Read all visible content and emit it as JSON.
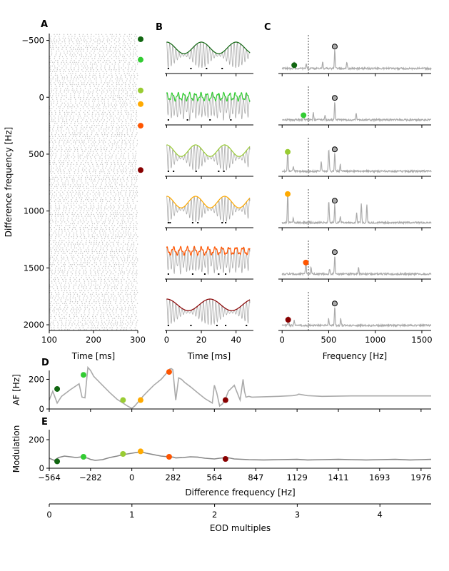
{
  "colors": {
    "trace": "#aaaaaa",
    "raster": "#c0c0c0",
    "dark_green": "#116611",
    "green": "#33cc33",
    "yellow_green": "#99cc33",
    "orange": "#ffaa00",
    "red_orange": "#ff5500",
    "dark_red": "#880000"
  },
  "chart_data": [
    {
      "panel": "A",
      "type": "scatter",
      "xlabel": "Time [ms]",
      "ylabel": "Difference frequency [Hz]",
      "xlim": [
        100,
        300
      ],
      "ylim": [
        2050,
        -560
      ],
      "y_inverted": true,
      "xticks": [
        100,
        200,
        300
      ],
      "yticks": [
        -500,
        0,
        500,
        1000,
        1500,
        2000
      ],
      "marker_df": [
        -510,
        -330,
        -60,
        60,
        250,
        640
      ],
      "marker_colors": [
        "dark_green",
        "green",
        "yellow_green",
        "orange",
        "red_orange",
        "dark_red"
      ]
    },
    {
      "panel": "B",
      "type": "line",
      "xlabel": "Time [ms]",
      "xlim": [
        -1,
        50
      ],
      "xticks": [
        0,
        20,
        40
      ],
      "traces": [
        {
          "df": -510,
          "color": "dark_green",
          "envelope": "smooth",
          "env_period_ms": 20,
          "spikes_ms": [
            1,
            14,
            23,
            32
          ]
        },
        {
          "df": -330,
          "color": "green",
          "envelope": "jagged",
          "env_period_ms": 3.3,
          "spikes_ms": [
            1,
            12,
            25,
            37
          ]
        },
        {
          "df": -60,
          "color": "yellow_green",
          "envelope": "smooth",
          "env_period_ms": 16.7,
          "spikes_ms": [
            1,
            4,
            17,
            30,
            33
          ]
        },
        {
          "df": 60,
          "color": "orange",
          "envelope": "smooth",
          "env_period_ms": 16.7,
          "spikes_ms": [
            1,
            2,
            15,
            18,
            32,
            34
          ]
        },
        {
          "df": 250,
          "color": "red_orange",
          "envelope": "jagged",
          "env_period_ms": 4,
          "spikes_ms": [
            1,
            15,
            22,
            30,
            34
          ]
        },
        {
          "df": 640,
          "color": "dark_red",
          "envelope": "smooth",
          "env_period_ms": 25,
          "spikes_ms": [
            1,
            14,
            29,
            34,
            46
          ]
        }
      ]
    },
    {
      "panel": "C",
      "type": "line",
      "xlabel": "Frequency [Hz]",
      "xlim": [
        -40,
        1600
      ],
      "xticks": [
        0,
        500,
        1000,
        1500
      ],
      "eodf_hz": 565,
      "dashed_line_hz": 282,
      "beat_markers_hz": [
        130,
        230,
        60,
        60,
        255,
        65
      ],
      "beat_marker_heights": [
        0.18,
        0.22,
        0.65,
        0.92,
        0.42,
        0.25
      ]
    },
    {
      "panel": "D",
      "type": "line",
      "ylabel": "AF [Hz]",
      "xlim": [
        -564,
        2045
      ],
      "ylim": [
        0,
        260
      ],
      "yticks": [
        0,
        200
      ],
      "x": [
        -564,
        -540,
        -510,
        -480,
        -420,
        -360,
        -340,
        -320,
        -300,
        -282,
        -260,
        -200,
        -150,
        -100,
        -60,
        -30,
        -10,
        0,
        20,
        50,
        80,
        110,
        150,
        200,
        240,
        260,
        270,
        280,
        300,
        320,
        340,
        360,
        400,
        450,
        500,
        550,
        564,
        580,
        600,
        620,
        640,
        660,
        700,
        740,
        760,
        770,
        780,
        800,
        820,
        1000,
        1100,
        1129,
        1140,
        1200,
        1300,
        1500,
        1600,
        1700,
        1800,
        1900,
        2045
      ],
      "y": [
        60,
        120,
        40,
        85,
        130,
        170,
        80,
        75,
        280,
        260,
        220,
        160,
        110,
        65,
        40,
        20,
        10,
        5,
        20,
        55,
        90,
        120,
        160,
        200,
        245,
        270,
        272,
        265,
        60,
        210,
        200,
        180,
        150,
        110,
        70,
        40,
        160,
        110,
        20,
        35,
        70,
        120,
        160,
        60,
        200,
        120,
        80,
        85,
        80,
        85,
        90,
        95,
        100,
        90,
        85,
        88,
        88,
        88,
        88,
        88,
        88
      ],
      "markers_x": [
        -510,
        -330,
        -60,
        60,
        255,
        640
      ],
      "markers_y": [
        135,
        230,
        60,
        60,
        250,
        60
      ]
    },
    {
      "panel": "E",
      "type": "line",
      "ylabel": "Modulation",
      "xlabel": "Difference frequency [Hz]",
      "xlim": [
        -564,
        2045
      ],
      "ylim": [
        0,
        270
      ],
      "yticks": [
        0,
        200
      ],
      "xticks": [
        -564,
        -282,
        0,
        282,
        564,
        847,
        1129,
        1411,
        1693,
        1976
      ],
      "x": [
        -564,
        -530,
        -500,
        -460,
        -420,
        -380,
        -340,
        -300,
        -282,
        -250,
        -200,
        -150,
        -100,
        -60,
        -30,
        0,
        30,
        60,
        100,
        150,
        200,
        250,
        282,
        300,
        350,
        400,
        450,
        500,
        564,
        600,
        650,
        700,
        800,
        900,
        1000,
        1129,
        1200,
        1300,
        1411,
        1500,
        1600,
        1693,
        1800,
        1900,
        1976,
        2045
      ],
      "y": [
        70,
        55,
        75,
        85,
        80,
        75,
        80,
        70,
        62,
        55,
        60,
        75,
        85,
        95,
        100,
        105,
        110,
        115,
        105,
        95,
        85,
        80,
        78,
        72,
        75,
        80,
        78,
        70,
        65,
        70,
        75,
        65,
        60,
        58,
        60,
        62,
        58,
        60,
        62,
        60,
        58,
        60,
        62,
        58,
        60,
        62
      ],
      "markers_x": [
        -510,
        -330,
        -60,
        60,
        255,
        640
      ],
      "markers_y": [
        48,
        80,
        100,
        118,
        80,
        65
      ]
    },
    {
      "panel": "EOD",
      "type": "axis",
      "xlabel": "EOD multiples",
      "xlim": [
        0,
        4.62
      ],
      "xticks": [
        0,
        1,
        2,
        3,
        4
      ]
    }
  ],
  "labels": {
    "panel_a": "A",
    "panel_b": "B",
    "panel_c": "C",
    "panel_d": "D",
    "panel_e": "E"
  }
}
